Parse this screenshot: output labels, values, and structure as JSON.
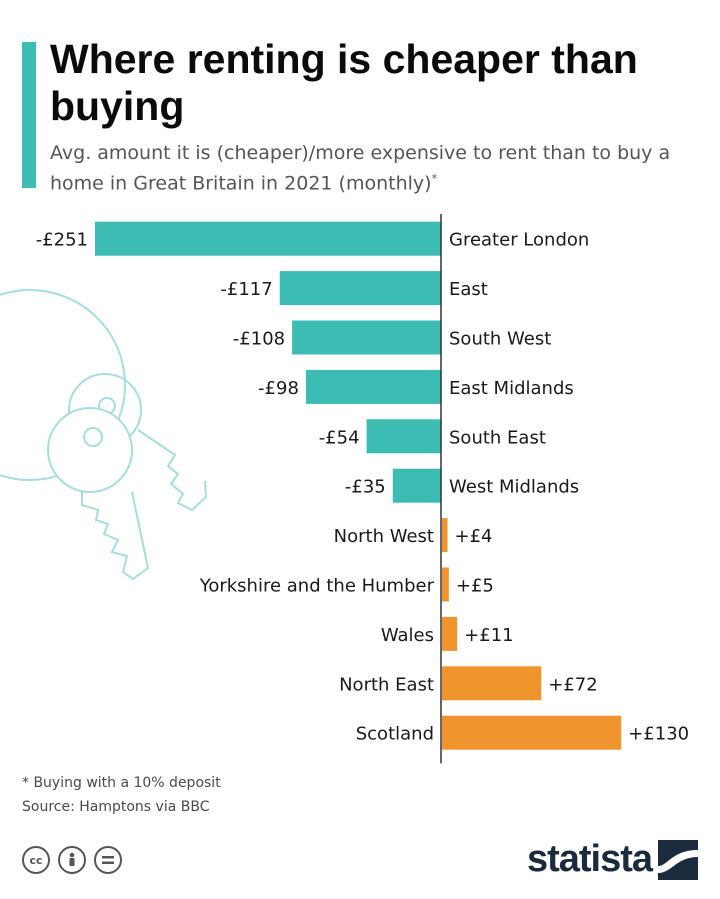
{
  "title": "Where renting is cheaper than buying",
  "subtitle": "Avg. amount it is (cheaper)/more expensive to rent than to buy a home in Great Britain in 2021 (monthly)",
  "subtitle_mark": "*",
  "colors": {
    "accent": "#3dbcb3",
    "negative": "#3dbcb3",
    "positive": "#f0952e",
    "brand": "#1c2a3d"
  },
  "chart_data": {
    "type": "bar",
    "orientation": "horizontal",
    "categories": [
      "Greater London",
      "East",
      "South West",
      "East Midlands",
      "South East",
      "West Midlands",
      "North West",
      "Yorkshire and the Humber",
      "Wales",
      "North East",
      "Scotland"
    ],
    "values": [
      -251,
      -117,
      -108,
      -98,
      -54,
      -35,
      4,
      5,
      11,
      72,
      130
    ],
    "value_labels": [
      "-£251",
      "-£117",
      "-£108",
      "-£98",
      "-£54",
      "-£35",
      "+£4",
      "+£5",
      "+£11",
      "+£72",
      "+£130"
    ],
    "xlim": [
      -251,
      130
    ],
    "grid": false
  },
  "footnote": {
    "note": "* Buying with a 10% deposit",
    "source": "Source: Hamptons via BBC"
  },
  "license_icons": [
    "cc-icon",
    "person-icon",
    "equals-icon"
  ],
  "brand": {
    "name": "statista",
    "icon": "statista-logo-icon"
  }
}
